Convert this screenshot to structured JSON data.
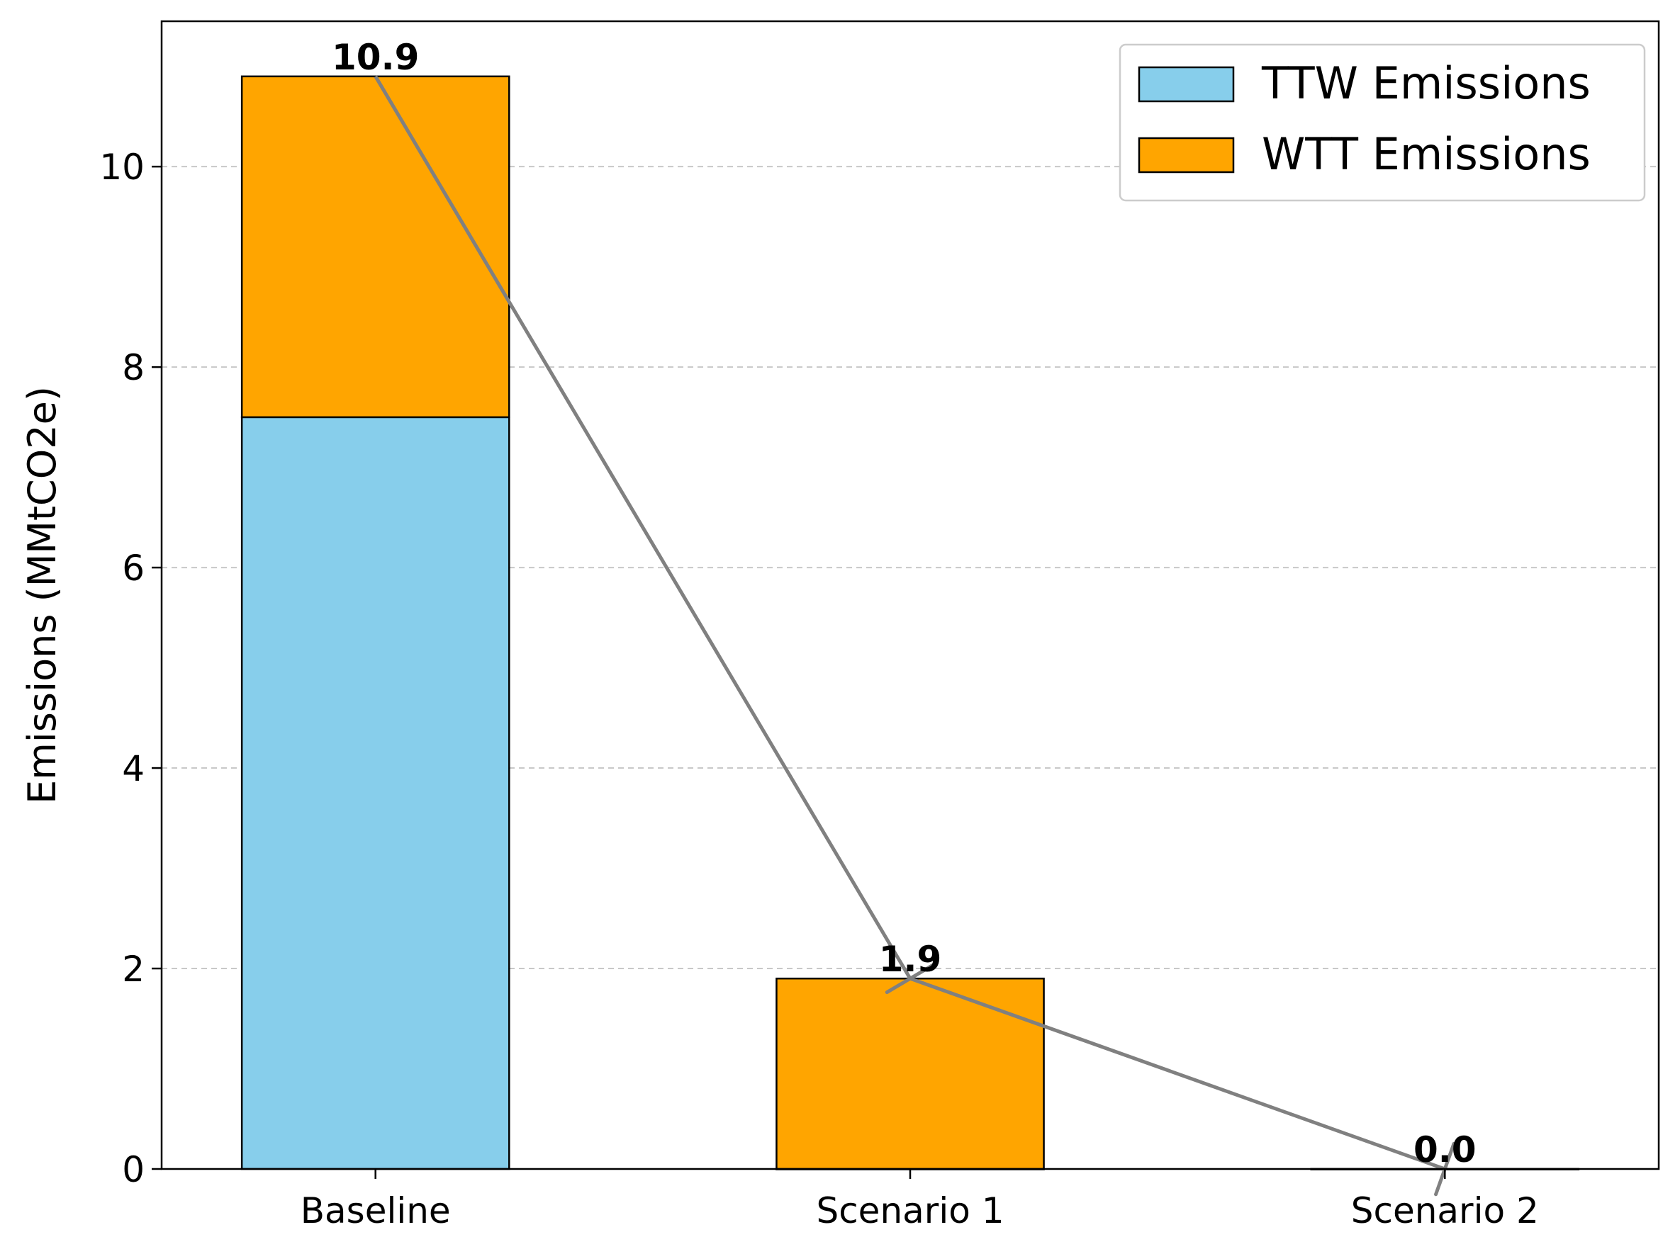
{
  "chart_data": {
    "type": "bar",
    "stacked": true,
    "categories": [
      "Baseline",
      "Scenario 1",
      "Scenario 2"
    ],
    "series": [
      {
        "name": "TTW Emissions",
        "values": [
          7.5,
          0.0,
          0.0
        ],
        "color": "#87CEEB"
      },
      {
        "name": "WTT Emissions",
        "values": [
          3.4,
          1.9,
          0.0
        ],
        "color": "#FFA500"
      }
    ],
    "totals": [
      10.9,
      1.9,
      0.0
    ],
    "total_labels": [
      "10.9",
      "1.9",
      "0.0"
    ],
    "trend_line": {
      "color": "#808080",
      "values": [
        10.9,
        1.9,
        0.0
      ]
    },
    "title": "",
    "xlabel": "",
    "ylabel": "Emissions (MMtCO2e)",
    "ylim": [
      0,
      11.45
    ],
    "yticks": [
      0,
      2,
      4,
      6,
      8,
      10
    ],
    "grid": {
      "y": true,
      "style": "dashed",
      "color": "#c8c8c8"
    },
    "legend": {
      "position": "top-right"
    }
  }
}
